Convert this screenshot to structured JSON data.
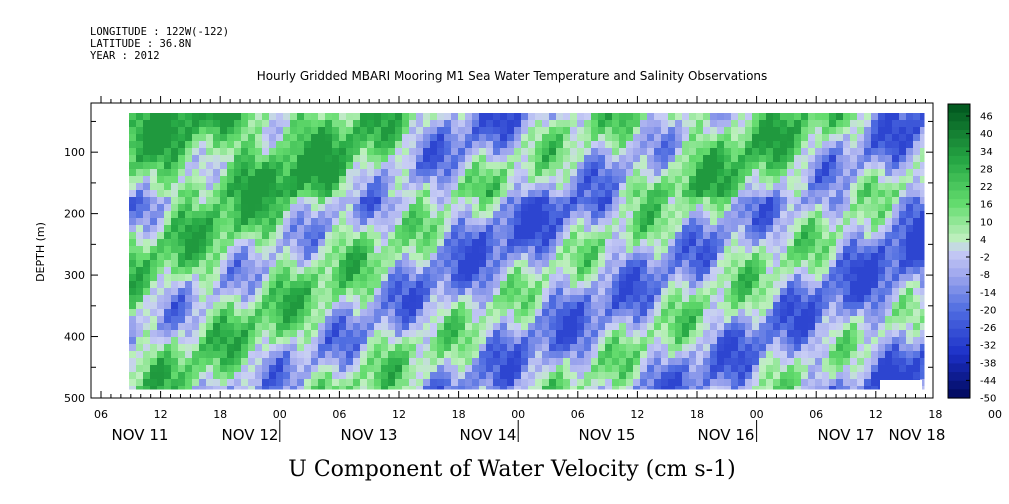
{
  "meta": {
    "longitude": "LONGITUDE : 122W(-122)",
    "latitude": "LATITUDE : 36.8N",
    "year": "YEAR : 2012"
  },
  "chart_data": {
    "type": "heatmap",
    "title": "Hourly Gridded MBARI Mooring M1 Sea Water Temperature and Salinity Observations",
    "xlabel": "U Component of Water Velocity (cm s-1)",
    "ylabel": "DEPTH (m)",
    "ylim": [
      500,
      20
    ],
    "y_ticks": [
      100,
      200,
      300,
      400,
      500
    ],
    "x_hour_ticks": [
      "06",
      "12",
      "18",
      "00",
      "06",
      "12",
      "18",
      "00",
      "06",
      "12",
      "18",
      "00",
      "06",
      "12",
      "18",
      "00",
      "06",
      "12",
      "18",
      "00",
      "06",
      "12",
      "18",
      "00",
      "06",
      "12",
      "18",
      "00",
      "06",
      "12",
      "18",
      "00"
    ],
    "x_day_labels": [
      "NOV 11",
      "NOV 12",
      "NOV 13",
      "NOV 14",
      "NOV 15",
      "NOV 16",
      "NOV 17",
      "NOV 18"
    ],
    "colorbar_labels": [
      "46",
      "40",
      "34",
      "28",
      "22",
      "16",
      "10",
      "4",
      "-2",
      "-8",
      "-14",
      "-20",
      "-26",
      "-32",
      "-38",
      "-44",
      "-50"
    ],
    "color_range": [
      -50,
      50
    ],
    "colors": {
      "low": "#000c6e",
      "mid_low": "#aab0ec",
      "mid_high": "#b6f0b6",
      "high": "#005a1e"
    }
  }
}
